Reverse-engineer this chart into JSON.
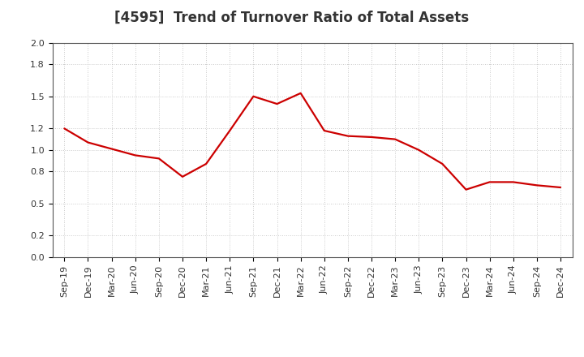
{
  "title": "[4595]  Trend of Turnover Ratio of Total Assets",
  "labels": [
    "Sep-19",
    "Dec-19",
    "Mar-20",
    "Jun-20",
    "Sep-20",
    "Dec-20",
    "Mar-21",
    "Jun-21",
    "Sep-21",
    "Dec-21",
    "Mar-22",
    "Jun-22",
    "Sep-22",
    "Dec-22",
    "Mar-23",
    "Jun-23",
    "Sep-23",
    "Dec-23",
    "Mar-24",
    "Jun-24",
    "Sep-24",
    "Dec-24"
  ],
  "values": [
    1.2,
    1.07,
    1.01,
    0.95,
    0.92,
    0.75,
    0.87,
    1.18,
    1.5,
    1.43,
    1.53,
    1.18,
    1.13,
    1.12,
    1.1,
    1.0,
    0.87,
    0.63,
    0.7,
    0.7,
    0.67,
    0.65
  ],
  "line_color": "#cc0000",
  "line_width": 1.6,
  "background_color": "#ffffff",
  "plot_bg_color": "#ffffff",
  "grid_color": "#bbbbbb",
  "ylim": [
    0.0,
    2.0
  ],
  "yticks": [
    0.0,
    0.2,
    0.5,
    0.8,
    1.0,
    1.2,
    1.5,
    1.8,
    2.0
  ],
  "title_fontsize": 12,
  "tick_fontsize": 8,
  "title_color": "#333333"
}
